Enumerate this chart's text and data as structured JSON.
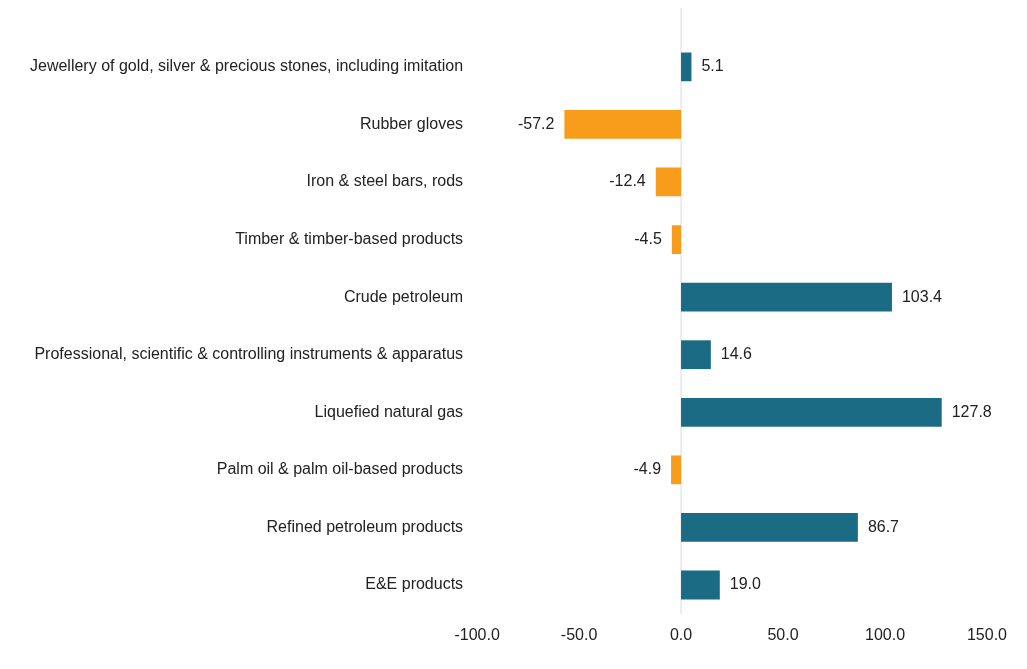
{
  "chart_data": {
    "type": "bar",
    "orientation": "horizontal",
    "categories": [
      "Jewellery of gold, silver & precious stones, including imitation",
      "Rubber gloves",
      "Iron & steel bars, rods",
      "Timber & timber-based products",
      "Crude petroleum",
      "Professional, scientific & controlling instruments & apparatus",
      "Liquefied natural gas",
      "Palm oil & palm oil-based products",
      "Refined petroleum products",
      "E&E products"
    ],
    "values": [
      5.1,
      -57.2,
      -12.4,
      -4.5,
      103.4,
      14.6,
      127.8,
      -4.9,
      86.7,
      19.0
    ],
    "value_labels": [
      "5.1",
      "-57.2",
      "-12.4",
      "-4.5",
      "103.4",
      "14.6",
      "127.8",
      "-4.9",
      "86.7",
      "19.0"
    ],
    "colors": [
      "#1b6b85",
      "#f89c1c",
      "#f89c1c",
      "#f89c1c",
      "#1b6b85",
      "#1b6b85",
      "#1b6b85",
      "#f89c1c",
      "#1b6b85",
      "#1b6b85"
    ],
    "xlim": [
      -100,
      150
    ],
    "xticks": [
      {
        "value": -100,
        "label": "-100.0"
      },
      {
        "value": -50,
        "label": "-50.0"
      },
      {
        "value": 0,
        "label": "0.0"
      },
      {
        "value": 50,
        "label": "50.0"
      },
      {
        "value": 100,
        "label": "100.0"
      },
      {
        "value": 150,
        "label": "150.0"
      }
    ],
    "ref_lines": [
      {
        "axis": "x",
        "value": 0,
        "color": "#d9d9d9"
      }
    ]
  }
}
